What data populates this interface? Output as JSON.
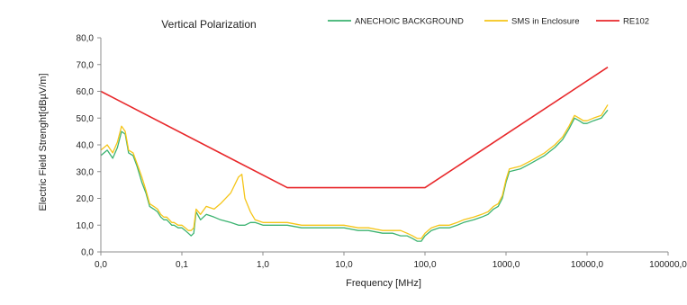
{
  "chart_data": {
    "type": "line",
    "title": "Vertical Polarization",
    "xlabel": "Frequency [MHz]",
    "ylabel": "Electric Field Strenght[dBµV/m]",
    "x_scale": "log",
    "xlim": [
      0.01,
      100000
    ],
    "ylim": [
      0,
      80
    ],
    "x_tick_values": [
      0.01,
      0.1,
      1,
      10,
      100,
      1000,
      10000,
      100000
    ],
    "x_tick_labels": [
      "0,0",
      "0,1",
      "1,0",
      "10,0",
      "100,0",
      "1000,0",
      "10000,0",
      "100000,0"
    ],
    "y_tick_values": [
      0,
      10,
      20,
      30,
      40,
      50,
      60,
      70,
      80
    ],
    "y_tick_labels": [
      "0,0",
      "10,0",
      "20,0",
      "30,0",
      "40,0",
      "50,0",
      "60,0",
      "70,0",
      "80,0"
    ],
    "grid": false,
    "legend_position": "top",
    "series": [
      {
        "name": "ANECHOIC BACKGROUND",
        "color": "#3cb371",
        "x": [
          0.01,
          0.012,
          0.014,
          0.016,
          0.018,
          0.02,
          0.022,
          0.025,
          0.028,
          0.032,
          0.036,
          0.04,
          0.045,
          0.05,
          0.055,
          0.06,
          0.065,
          0.07,
          0.075,
          0.08,
          0.09,
          0.1,
          0.11,
          0.12,
          0.13,
          0.14,
          0.15,
          0.17,
          0.2,
          0.25,
          0.3,
          0.4,
          0.5,
          0.6,
          0.7,
          0.8,
          1,
          1.5,
          2,
          3,
          5,
          7,
          10,
          15,
          20,
          30,
          40,
          50,
          60,
          70,
          80,
          90,
          100,
          120,
          150,
          200,
          250,
          300,
          400,
          500,
          600,
          700,
          800,
          900,
          1000,
          1100,
          1500,
          2000,
          3000,
          4000,
          5000,
          6000,
          7000,
          8000,
          9000,
          10000,
          12000,
          15000,
          18000
        ],
        "y": [
          36,
          38,
          35,
          39,
          45,
          44,
          37,
          36,
          32,
          26,
          22,
          17,
          16,
          15,
          13,
          12,
          12,
          11,
          10,
          10,
          9,
          9,
          8,
          7,
          6,
          7,
          15,
          12,
          14,
          13,
          12,
          11,
          10,
          10,
          11,
          11,
          10,
          10,
          10,
          9,
          9,
          9,
          9,
          8,
          8,
          7,
          7,
          6,
          6,
          5,
          4,
          4,
          6,
          8,
          9,
          9,
          10,
          11,
          12,
          13,
          14,
          16,
          17,
          20,
          26,
          30,
          31,
          33,
          36,
          39,
          42,
          46,
          50,
          49,
          48,
          48,
          49,
          50,
          53
        ]
      },
      {
        "name": "SMS in Enclosure",
        "color": "#f5c518",
        "x": [
          0.01,
          0.012,
          0.014,
          0.016,
          0.018,
          0.02,
          0.022,
          0.025,
          0.028,
          0.032,
          0.036,
          0.04,
          0.045,
          0.05,
          0.055,
          0.06,
          0.065,
          0.07,
          0.075,
          0.08,
          0.09,
          0.1,
          0.11,
          0.12,
          0.13,
          0.14,
          0.15,
          0.17,
          0.2,
          0.25,
          0.3,
          0.4,
          0.5,
          0.55,
          0.6,
          0.7,
          0.8,
          1,
          1.5,
          2,
          3,
          5,
          7,
          10,
          15,
          20,
          30,
          40,
          50,
          60,
          70,
          80,
          90,
          100,
          120,
          150,
          200,
          250,
          300,
          400,
          500,
          600,
          700,
          800,
          900,
          1000,
          1100,
          1500,
          2000,
          3000,
          4000,
          5000,
          6000,
          7000,
          8000,
          9000,
          10000,
          12000,
          15000,
          18000
        ],
        "y": [
          38,
          40,
          37,
          41,
          47,
          45,
          38,
          37,
          33,
          28,
          23,
          18,
          17,
          16,
          14,
          13,
          13,
          12,
          11,
          11,
          10,
          10,
          9,
          8,
          8,
          9,
          16,
          14,
          17,
          16,
          18,
          22,
          28,
          29,
          20,
          15,
          12,
          11,
          11,
          11,
          10,
          10,
          10,
          10,
          9,
          9,
          8,
          8,
          8,
          7,
          6,
          5,
          5,
          7,
          9,
          10,
          10,
          11,
          12,
          13,
          14,
          15,
          17,
          18,
          21,
          27,
          31,
          32,
          34,
          37,
          40,
          43,
          47,
          51,
          50,
          49,
          49,
          50,
          51,
          55
        ]
      },
      {
        "name": "RE102",
        "color": "#e8282b",
        "x": [
          0.01,
          2,
          100,
          18000
        ],
        "y": [
          60,
          24,
          24,
          69
        ]
      }
    ]
  }
}
